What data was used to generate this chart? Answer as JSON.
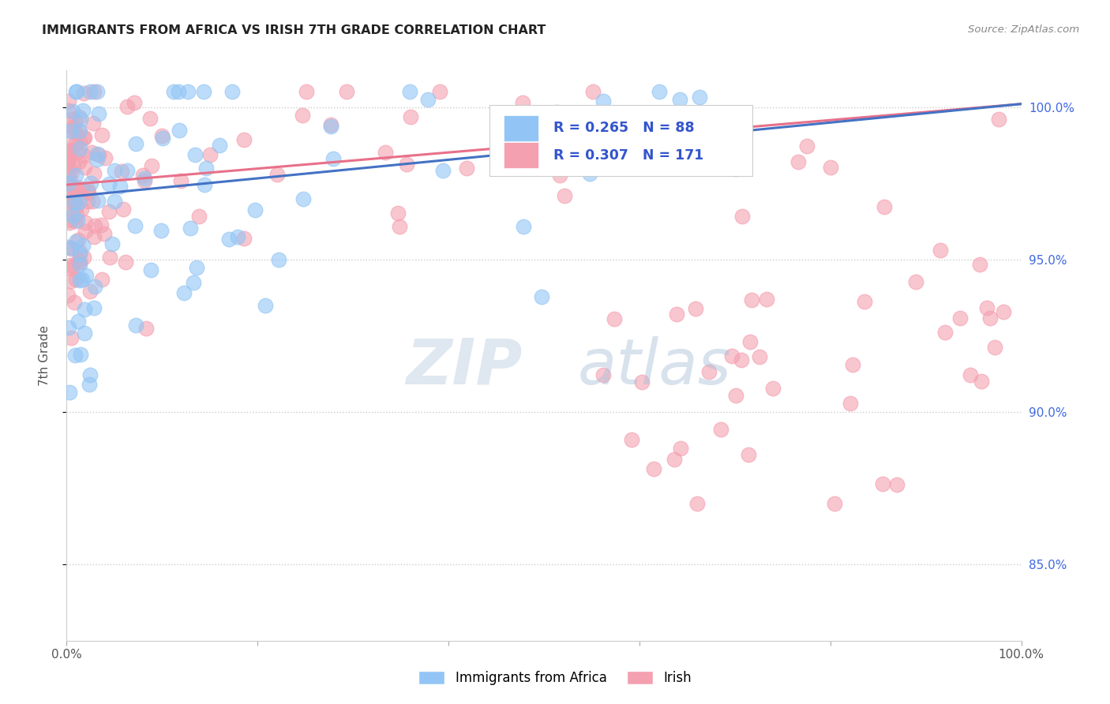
{
  "title": "IMMIGRANTS FROM AFRICA VS IRISH 7TH GRADE CORRELATION CHART",
  "source": "Source: ZipAtlas.com",
  "ylabel": "7th Grade",
  "x_range": [
    0.0,
    1.0
  ],
  "y_range": [
    0.825,
    1.012
  ],
  "africa_R": 0.265,
  "africa_N": 88,
  "irish_R": 0.307,
  "irish_N": 171,
  "africa_color": "#92c5f5",
  "irish_color": "#f4a0b0",
  "africa_line_color": "#4472c4",
  "irish_line_color": "#e8708a",
  "legend_text_color": "#3355cc",
  "watermark_zip_color": "#c8d8e8",
  "watermark_atlas_color": "#a8c0d8",
  "africa_line_start_y": 0.9705,
  "africa_line_end_y": 1.001,
  "irish_line_start_y": 0.9745,
  "irish_line_end_y": 1.001,
  "y_ticks": [
    0.85,
    0.9,
    0.95,
    1.0
  ],
  "y_tick_labels": [
    "85.0%",
    "90.0%",
    "95.0%",
    "100.0%"
  ]
}
